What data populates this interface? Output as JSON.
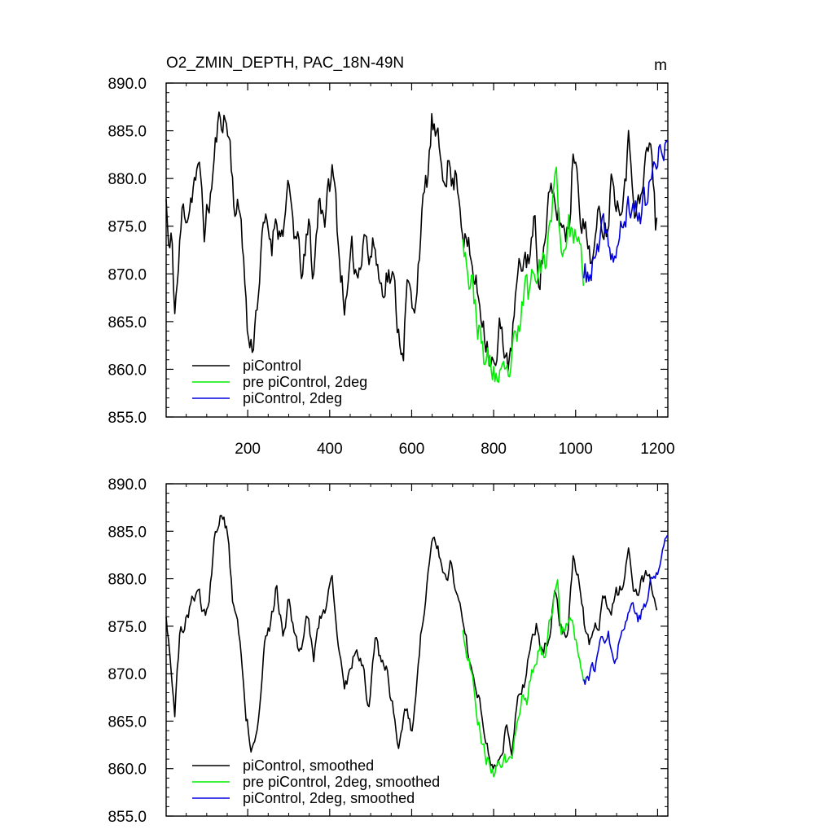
{
  "figure": {
    "title": "O2_ZMIN_DEPTH, PAC_18N-49N",
    "units": "m"
  },
  "chart_data": [
    {
      "type": "line",
      "name": "raw",
      "title": "O2_ZMIN_DEPTH, PAC_18N-49N",
      "units": "m",
      "xlabel": "",
      "ylabel": "",
      "xlim": [
        1,
        1225
      ],
      "ylim": [
        855.0,
        890.0
      ],
      "x_ticks": [
        200,
        400,
        600,
        800,
        1000,
        1200
      ],
      "x_tick_labels": [
        "200",
        "400",
        "600",
        "800",
        "1000",
        "1200"
      ],
      "y_ticks": [
        890.0,
        885.0,
        880.0,
        875.0,
        870.0,
        865.0,
        860.0,
        855.0
      ],
      "y_tick_labels": [
        "890.0",
        "885.0",
        "880.0",
        "875.0",
        "870.0",
        "865.0",
        "860.0",
        "855.0"
      ],
      "grid": false,
      "legend_position": "bottom-left",
      "series": [
        {
          "name": "piControl",
          "color": "#000000",
          "x_start": 1,
          "x_end": 1200,
          "anchors": [
            [
              1,
              877.8
            ],
            [
              8,
              871.8
            ],
            [
              15,
              873.3
            ],
            [
              22,
              866.2
            ],
            [
              30,
              870.0
            ],
            [
              40,
              876.2
            ],
            [
              55,
              877.0
            ],
            [
              70,
              880.1
            ],
            [
              85,
              880.0
            ],
            [
              95,
              874.5
            ],
            [
              110,
              878.5
            ],
            [
              125,
              884.7
            ],
            [
              140,
              887.0
            ],
            [
              155,
              884.5
            ],
            [
              170,
              876.5
            ],
            [
              185,
              876.0
            ],
            [
              200,
              863.5
            ],
            [
              210,
              862.0
            ],
            [
              220,
              866.0
            ],
            [
              240,
              875.0
            ],
            [
              260,
              873.5
            ],
            [
              270,
              877.0
            ],
            [
              280,
              874.0
            ],
            [
              300,
              878.0
            ],
            [
              320,
              873.0
            ],
            [
              335,
              870.0
            ],
            [
              350,
              875.0
            ],
            [
              360,
              869.5
            ],
            [
              375,
              878.5
            ],
            [
              390,
              876.0
            ],
            [
              405,
              881.0
            ],
            [
              415,
              877.5
            ],
            [
              425,
              871.0
            ],
            [
              440,
              866.5
            ],
            [
              455,
              871.5
            ],
            [
              470,
              870.0
            ],
            [
              485,
              876.0
            ],
            [
              495,
              871.5
            ],
            [
              510,
              873.0
            ],
            [
              525,
              868.5
            ],
            [
              540,
              870.5
            ],
            [
              555,
              869.0
            ],
            [
              570,
              863.5
            ],
            [
              580,
              863.0
            ],
            [
              590,
              869.0
            ],
            [
              605,
              865.0
            ],
            [
              620,
              874.0
            ],
            [
              640,
              880.5
            ],
            [
              650,
              886.0
            ],
            [
              660,
              883.5
            ],
            [
              675,
              881.0
            ],
            [
              690,
              882.0
            ],
            [
              700,
              879.0
            ],
            [
              710,
              881.0
            ],
            [
              725,
              875.0
            ],
            [
              745,
              871.0
            ],
            [
              760,
              868.0
            ],
            [
              775,
              865.5
            ],
            [
              790,
              862.0
            ],
            [
              805,
              859.5
            ],
            [
              815,
              864.0
            ],
            [
              825,
              863.0
            ],
            [
              840,
              860.0
            ],
            [
              855,
              868.0
            ],
            [
              870,
              871.0
            ],
            [
              885,
              872.0
            ],
            [
              900,
              875.0
            ],
            [
              910,
              870.5
            ],
            [
              920,
              872.0
            ],
            [
              935,
              878.0
            ],
            [
              950,
              876.5
            ],
            [
              965,
              875.5
            ],
            [
              975,
              874.0
            ],
            [
              985,
              876.0
            ],
            [
              995,
              883.5
            ],
            [
              1005,
              881.0
            ],
            [
              1015,
              876.0
            ],
            [
              1030,
              873.0
            ],
            [
              1045,
              872.0
            ],
            [
              1060,
              876.5
            ],
            [
              1075,
              875.0
            ],
            [
              1090,
              881.0
            ],
            [
              1105,
              877.0
            ],
            [
              1120,
              881.0
            ],
            [
              1130,
              884.0
            ],
            [
              1145,
              878.0
            ],
            [
              1160,
              877.0
            ],
            [
              1170,
              882.0
            ],
            [
              1185,
              883.5
            ],
            [
              1195,
              874.5
            ],
            [
              1200,
              876.0
            ]
          ],
          "noise": 2.0,
          "seed": 11
        },
        {
          "name": "pre piControl, 2deg",
          "color": "#00ee00",
          "x_start": 725,
          "x_end": 1020,
          "anchors": [
            [
              725,
              875.0
            ],
            [
              740,
              870.0
            ],
            [
              755,
              867.0
            ],
            [
              770,
              862.0
            ],
            [
              785,
              860.5
            ],
            [
              800,
              860.0
            ],
            [
              815,
              858.5
            ],
            [
              830,
              858.0
            ],
            [
              845,
              861.0
            ],
            [
              860,
              863.0
            ],
            [
              875,
              868.5
            ],
            [
              885,
              868.0
            ],
            [
              895,
              870.0
            ],
            [
              910,
              872.5
            ],
            [
              925,
              870.5
            ],
            [
              940,
              877.0
            ],
            [
              955,
              880.0
            ],
            [
              965,
              872.0
            ],
            [
              980,
              875.0
            ],
            [
              995,
              874.5
            ],
            [
              1010,
              871.0
            ],
            [
              1020,
              870.0
            ]
          ],
          "noise": 2.1,
          "seed": 23
        },
        {
          "name": "piControl, 2deg",
          "color": "#0000dd",
          "x_start": 1020,
          "x_end": 1225,
          "anchors": [
            [
              1020,
              869.5
            ],
            [
              1035,
              870.0
            ],
            [
              1050,
              871.5
            ],
            [
              1065,
              874.0
            ],
            [
              1080,
              873.5
            ],
            [
              1095,
              871.5
            ],
            [
              1110,
              874.0
            ],
            [
              1125,
              876.5
            ],
            [
              1140,
              877.0
            ],
            [
              1155,
              876.5
            ],
            [
              1170,
              877.5
            ],
            [
              1185,
              880.0
            ],
            [
              1200,
              881.5
            ],
            [
              1212,
              883.5
            ],
            [
              1225,
              884.5
            ]
          ],
          "noise": 1.8,
          "seed": 37
        }
      ]
    },
    {
      "type": "line",
      "name": "smoothed",
      "title": "",
      "xlabel": "",
      "ylabel": "",
      "xlim": [
        1,
        1225
      ],
      "ylim": [
        855.0,
        890.0
      ],
      "x_ticks": [
        200,
        400,
        600,
        800,
        1000,
        1200
      ],
      "y_ticks": [
        890.0,
        885.0,
        880.0,
        875.0,
        870.0,
        865.0,
        860.0,
        855.0
      ],
      "y_tick_labels": [
        "890.0",
        "885.0",
        "880.0",
        "875.0",
        "870.0",
        "865.0",
        "860.0",
        "855.0"
      ],
      "grid": false,
      "legend_position": "bottom-left",
      "series": [
        {
          "name": "piControl, smoothed",
          "color": "#000000",
          "x_start": 1,
          "x_end": 1200,
          "anchors": [
            [
              1,
              876.5
            ],
            [
              10,
              873.0
            ],
            [
              22,
              866.0
            ],
            [
              35,
              874.0
            ],
            [
              50,
              876.0
            ],
            [
              65,
              877.5
            ],
            [
              80,
              879.0
            ],
            [
              92,
              876.0
            ],
            [
              105,
              877.0
            ],
            [
              120,
              885.0
            ],
            [
              135,
              886.5
            ],
            [
              150,
              885.0
            ],
            [
              165,
              877.0
            ],
            [
              180,
              874.0
            ],
            [
              195,
              866.0
            ],
            [
              210,
              862.5
            ],
            [
              225,
              865.0
            ],
            [
              240,
              873.5
            ],
            [
              255,
              874.5
            ],
            [
              270,
              879.0
            ],
            [
              285,
              874.0
            ],
            [
              300,
              878.0
            ],
            [
              315,
              874.0
            ],
            [
              330,
              872.0
            ],
            [
              345,
              877.0
            ],
            [
              360,
              871.0
            ],
            [
              375,
              876.0
            ],
            [
              390,
              877.0
            ],
            [
              405,
              880.0
            ],
            [
              420,
              873.0
            ],
            [
              435,
              868.5
            ],
            [
              450,
              870.5
            ],
            [
              465,
              873.5
            ],
            [
              480,
              871.0
            ],
            [
              495,
              866.0
            ],
            [
              510,
              874.0
            ],
            [
              525,
              871.0
            ],
            [
              540,
              870.5
            ],
            [
              555,
              866.0
            ],
            [
              570,
              862.5
            ],
            [
              585,
              866.0
            ],
            [
              600,
              864.0
            ],
            [
              615,
              871.0
            ],
            [
              630,
              877.0
            ],
            [
              650,
              885.0
            ],
            [
              665,
              883.0
            ],
            [
              680,
              880.0
            ],
            [
              695,
              881.5
            ],
            [
              710,
              879.0
            ],
            [
              725,
              875.0
            ],
            [
              740,
              872.0
            ],
            [
              755,
              869.0
            ],
            [
              770,
              866.5
            ],
            [
              785,
              862.5
            ],
            [
              800,
              860.0
            ],
            [
              815,
              862.0
            ],
            [
              830,
              864.0
            ],
            [
              845,
              861.5
            ],
            [
              860,
              868.0
            ],
            [
              875,
              869.5
            ],
            [
              890,
              873.5
            ],
            [
              905,
              875.0
            ],
            [
              920,
              871.5
            ],
            [
              935,
              874.0
            ],
            [
              950,
              879.0
            ],
            [
              965,
              875.0
            ],
            [
              980,
              874.0
            ],
            [
              995,
              882.0
            ],
            [
              1010,
              879.0
            ],
            [
              1025,
              874.0
            ],
            [
              1040,
              873.0
            ],
            [
              1055,
              875.0
            ],
            [
              1070,
              878.0
            ],
            [
              1085,
              876.0
            ],
            [
              1100,
              878.5
            ],
            [
              1115,
              879.0
            ],
            [
              1130,
              883.0
            ],
            [
              1145,
              878.5
            ],
            [
              1160,
              879.5
            ],
            [
              1175,
              881.0
            ],
            [
              1190,
              878.0
            ],
            [
              1200,
              875.5
            ]
          ],
          "noise": 0.9,
          "seed": 51
        },
        {
          "name": "pre piControl, 2deg, smoothed",
          "color": "#00ee00",
          "x_start": 725,
          "x_end": 1020,
          "anchors": [
            [
              725,
              875.0
            ],
            [
              740,
              871.5
            ],
            [
              755,
              868.0
            ],
            [
              770,
              863.0
            ],
            [
              785,
              861.0
            ],
            [
              800,
              860.0
            ],
            [
              815,
              859.5
            ],
            [
              830,
              860.5
            ],
            [
              845,
              860.0
            ],
            [
              860,
              865.0
            ],
            [
              870,
              868.5
            ],
            [
              880,
              867.5
            ],
            [
              895,
              870.0
            ],
            [
              910,
              873.0
            ],
            [
              925,
              871.0
            ],
            [
              940,
              876.5
            ],
            [
              955,
              880.0
            ],
            [
              965,
              874.0
            ],
            [
              980,
              875.0
            ],
            [
              995,
              874.5
            ],
            [
              1010,
              871.0
            ],
            [
              1020,
              869.5
            ]
          ],
          "noise": 1.0,
          "seed": 63
        },
        {
          "name": "piControl, 2deg, smoothed",
          "color": "#0000dd",
          "x_start": 1020,
          "x_end": 1225,
          "anchors": [
            [
              1020,
              869.5
            ],
            [
              1035,
              870.0
            ],
            [
              1050,
              871.0
            ],
            [
              1065,
              874.5
            ],
            [
              1080,
              874.0
            ],
            [
              1095,
              872.0
            ],
            [
              1110,
              874.0
            ],
            [
              1125,
              876.0
            ],
            [
              1140,
              877.5
            ],
            [
              1155,
              876.0
            ],
            [
              1170,
              877.0
            ],
            [
              1185,
              880.0
            ],
            [
              1200,
              880.5
            ],
            [
              1212,
              883.0
            ],
            [
              1225,
              884.5
            ]
          ],
          "noise": 0.9,
          "seed": 77
        }
      ]
    }
  ]
}
